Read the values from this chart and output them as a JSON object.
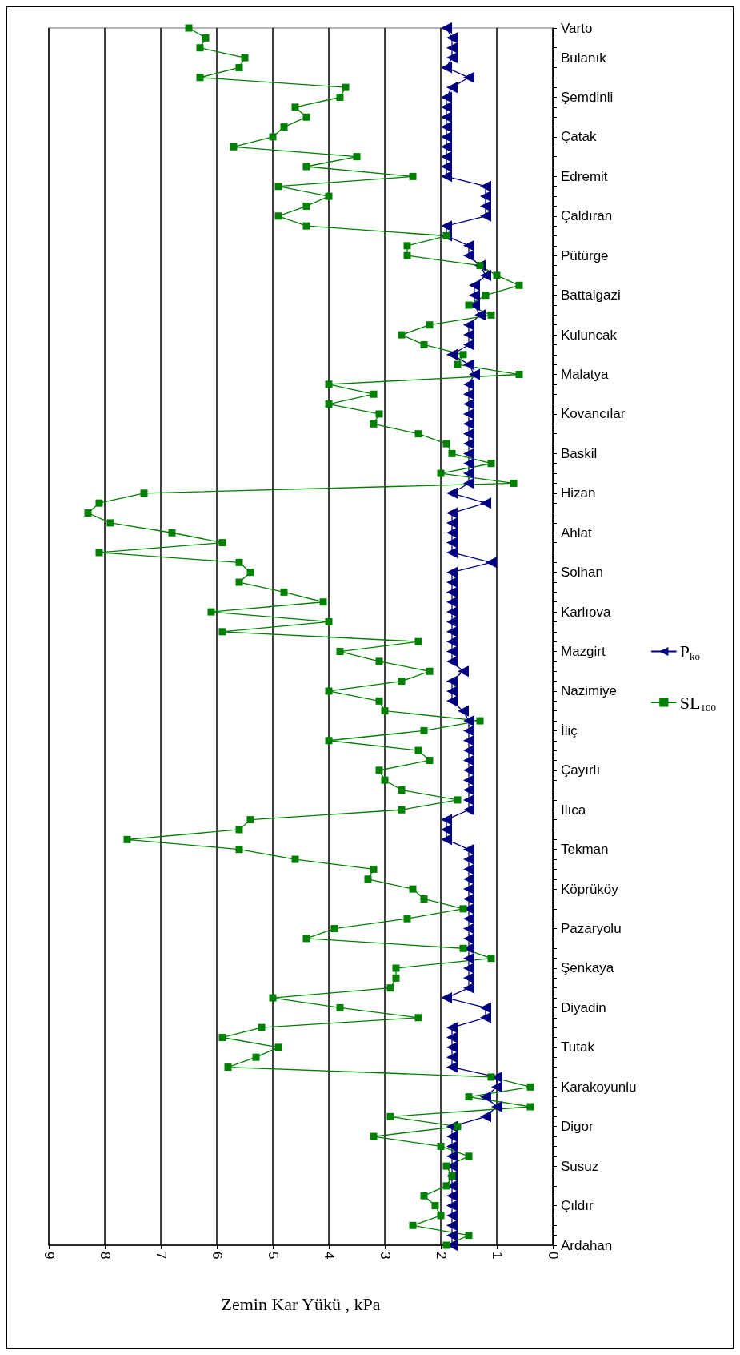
{
  "chart_data": {
    "type": "line",
    "orientation": "horizontal",
    "xlabel": "Zemin Kar Yükü , kPa",
    "categories": [
      "Varto",
      null,
      null,
      "Bulanık",
      null,
      null,
      null,
      "Şemdinli",
      null,
      null,
      null,
      "Çatak",
      null,
      null,
      null,
      "Edremit",
      null,
      null,
      null,
      "Çaldıran",
      null,
      null,
      null,
      "Pütürge",
      null,
      null,
      null,
      "Battalgazi",
      null,
      null,
      null,
      "Kuluncak",
      null,
      null,
      null,
      "Malatya",
      null,
      null,
      null,
      "Kovancılar",
      null,
      null,
      null,
      "Baskil",
      null,
      null,
      null,
      "Hizan",
      null,
      null,
      null,
      "Ahlat",
      null,
      null,
      null,
      "Solhan",
      null,
      null,
      null,
      "Karlıova",
      null,
      null,
      null,
      "Mazgirt",
      null,
      null,
      null,
      "Nazimiye",
      null,
      null,
      null,
      "İliç",
      null,
      null,
      null,
      "Çayırlı",
      null,
      null,
      null,
      "Ilıca",
      null,
      null,
      null,
      "Tekman",
      null,
      null,
      null,
      "Köprüköy",
      null,
      null,
      null,
      "Pazaryolu",
      null,
      null,
      null,
      "Şenkaya",
      null,
      null,
      null,
      "Diyadin",
      null,
      null,
      null,
      "Tutak",
      null,
      null,
      null,
      "Karakoyunlu",
      null,
      null,
      null,
      "Digor",
      null,
      null,
      null,
      "Susuz",
      null,
      null,
      null,
      "Çıldır",
      null,
      null,
      null,
      "Ardahan"
    ],
    "series": [
      {
        "name": "P$_{ko}$",
        "color": "#000080",
        "marker": "triangle",
        "values": [
          1.9,
          1.8,
          1.8,
          1.8,
          1.9,
          1.5,
          1.8,
          1.9,
          1.9,
          1.9,
          1.9,
          1.9,
          1.9,
          1.9,
          1.9,
          1.9,
          1.2,
          1.2,
          1.2,
          1.2,
          1.9,
          1.9,
          1.5,
          1.5,
          1.3,
          1.2,
          1.4,
          1.4,
          1.4,
          1.3,
          1.5,
          1.5,
          1.5,
          1.8,
          1.5,
          1.4,
          1.5,
          1.5,
          1.5,
          1.5,
          1.5,
          1.5,
          1.5,
          1.5,
          1.5,
          1.5,
          1.5,
          1.8,
          1.2,
          1.8,
          1.8,
          1.8,
          1.8,
          1.8,
          1.1,
          1.8,
          1.8,
          1.8,
          1.8,
          1.8,
          1.8,
          1.8,
          1.8,
          1.8,
          1.8,
          1.6,
          1.8,
          1.8,
          1.8,
          1.6,
          1.5,
          1.5,
          1.5,
          1.5,
          1.5,
          1.5,
          1.5,
          1.5,
          1.5,
          1.5,
          1.9,
          1.9,
          1.9,
          1.5,
          1.5,
          1.5,
          1.5,
          1.5,
          1.5,
          1.5,
          1.5,
          1.5,
          1.5,
          1.5,
          1.5,
          1.5,
          1.5,
          1.5,
          1.9,
          1.2,
          1.2,
          1.8,
          1.8,
          1.8,
          1.8,
          1.8,
          1.0,
          1.0,
          1.2,
          1.0,
          1.2,
          1.8,
          1.8,
          1.8,
          1.8,
          1.8,
          1.8,
          1.8,
          1.8,
          1.8,
          1.8,
          1.8,
          1.8,
          1.8
        ]
      },
      {
        "name": "SL$_{100}$",
        "color": "#008000",
        "marker": "square",
        "values": [
          6.5,
          6.2,
          6.3,
          5.5,
          5.6,
          6.3,
          3.7,
          3.8,
          4.6,
          4.4,
          4.8,
          5.0,
          5.7,
          3.5,
          4.4,
          2.5,
          4.9,
          4.0,
          4.4,
          4.9,
          4.4,
          1.9,
          2.6,
          2.6,
          1.3,
          1.0,
          0.6,
          1.2,
          1.5,
          1.1,
          2.2,
          2.7,
          2.3,
          1.6,
          1.7,
          0.6,
          4.0,
          3.2,
          4.0,
          3.1,
          3.2,
          2.4,
          1.9,
          1.8,
          1.1,
          2.0,
          0.7,
          7.3,
          8.1,
          8.3,
          7.9,
          6.8,
          5.9,
          8.1,
          5.6,
          5.4,
          5.6,
          4.8,
          4.1,
          6.1,
          4.0,
          5.9,
          2.4,
          3.8,
          3.1,
          2.2,
          2.7,
          4.0,
          3.1,
          3.0,
          1.3,
          2.3,
          4.0,
          2.4,
          2.2,
          3.1,
          3.0,
          2.7,
          1.7,
          2.7,
          5.4,
          5.6,
          7.6,
          5.6,
          4.6,
          3.2,
          3.3,
          2.5,
          2.3,
          1.6,
          2.6,
          3.9,
          4.4,
          1.6,
          1.1,
          2.8,
          2.8,
          2.9,
          5.0,
          3.8,
          2.4,
          5.2,
          5.9,
          4.9,
          5.3,
          5.8,
          1.1,
          0.4,
          1.5,
          0.4,
          2.9,
          1.7,
          3.2,
          2.0,
          1.5,
          1.9,
          1.8,
          1.9,
          2.3,
          2.1,
          2.0,
          2.5,
          1.5,
          1.9
        ]
      }
    ],
    "xlim": [
      9,
      0
    ],
    "xticks": [
      9,
      8,
      7,
      6,
      5,
      4,
      3,
      2,
      1,
      0
    ],
    "grid": "x",
    "legend": "right",
    "line_style": "solid"
  }
}
